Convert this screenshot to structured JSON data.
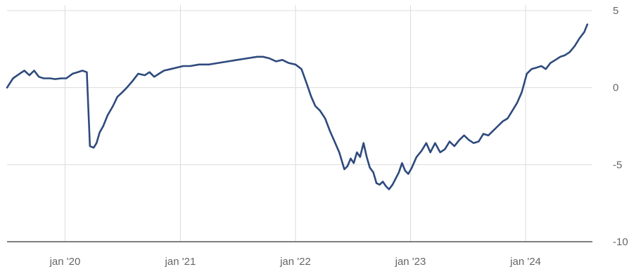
{
  "chart_data": {
    "type": "line",
    "title": "",
    "xlabel": "",
    "ylabel": "",
    "ylim": [
      -10,
      5
    ],
    "grid": true,
    "y_ticks": [
      5,
      0,
      -5,
      -10
    ],
    "y_tick_labels": [
      "5",
      "0",
      "-5",
      "-10"
    ],
    "x_ticks": [
      "2020-01-01",
      "2021-01-01",
      "2022-01-01",
      "2023-01-01",
      "2024-01-01"
    ],
    "x_tick_labels": [
      "jan '20",
      "jan '21",
      "jan '22",
      "jan '23",
      "jan '24"
    ],
    "x_range": [
      "2019-07-01",
      "2024-07-31"
    ],
    "line_color": "#2e4a7d",
    "series": [
      {
        "x": [
          "2019-07-01",
          "2019-07-20",
          "2019-08-10",
          "2019-08-25",
          "2019-09-10",
          "2019-09-25",
          "2019-10-10",
          "2019-10-25",
          "2019-11-15",
          "2019-12-01",
          "2019-12-20",
          "2020-01-05",
          "2020-01-25",
          "2020-02-10",
          "2020-02-25",
          "2020-03-10",
          "2020-03-20",
          "2020-04-01",
          "2020-04-10",
          "2020-04-20",
          "2020-05-01",
          "2020-05-15",
          "2020-06-01",
          "2020-06-15",
          "2020-07-01",
          "2020-07-15",
          "2020-08-01",
          "2020-08-20",
          "2020-09-10",
          "2020-09-25",
          "2020-10-10",
          "2020-10-25",
          "2020-11-10",
          "2020-12-01",
          "2020-12-20",
          "2021-01-10",
          "2021-02-01",
          "2021-03-01",
          "2021-04-01",
          "2021-05-01",
          "2021-06-01",
          "2021-07-01",
          "2021-08-01",
          "2021-09-01",
          "2021-09-20",
          "2021-10-10",
          "2021-11-01",
          "2021-11-20",
          "2021-12-10",
          "2022-01-01",
          "2022-01-20",
          "2022-02-05",
          "2022-02-20",
          "2022-03-05",
          "2022-03-20",
          "2022-04-05",
          "2022-04-20",
          "2022-05-05",
          "2022-05-20",
          "2022-06-05",
          "2022-06-15",
          "2022-06-25",
          "2022-07-05",
          "2022-07-15",
          "2022-07-25",
          "2022-08-05",
          "2022-08-15",
          "2022-08-25",
          "2022-09-05",
          "2022-09-15",
          "2022-09-25",
          "2022-10-05",
          "2022-10-15",
          "2022-10-25",
          "2022-11-05",
          "2022-11-15",
          "2022-11-25",
          "2022-12-05",
          "2022-12-15",
          "2022-12-25",
          "2023-01-05",
          "2023-01-20",
          "2023-02-05",
          "2023-02-20",
          "2023-03-05",
          "2023-03-20",
          "2023-04-05",
          "2023-04-20",
          "2023-05-05",
          "2023-05-20",
          "2023-06-05",
          "2023-06-20",
          "2023-07-05",
          "2023-07-20",
          "2023-08-05",
          "2023-08-20",
          "2023-09-05",
          "2023-09-20",
          "2023-10-05",
          "2023-10-20",
          "2023-11-05",
          "2023-11-20",
          "2023-12-05",
          "2023-12-20",
          "2024-01-05",
          "2024-01-20",
          "2024-02-05",
          "2024-02-20",
          "2024-03-05",
          "2024-03-20",
          "2024-04-05",
          "2024-04-20",
          "2024-05-05",
          "2024-05-20",
          "2024-06-05",
          "2024-06-20",
          "2024-07-05",
          "2024-07-15"
        ],
        "values": [
          0.0,
          0.6,
          0.9,
          1.1,
          0.8,
          1.1,
          0.7,
          0.6,
          0.6,
          0.55,
          0.6,
          0.6,
          0.9,
          1.0,
          1.1,
          1.0,
          -3.8,
          -3.9,
          -3.6,
          -2.9,
          -2.5,
          -1.8,
          -1.2,
          -0.6,
          -0.3,
          0.0,
          0.4,
          0.9,
          0.8,
          1.0,
          0.7,
          0.9,
          1.1,
          1.2,
          1.3,
          1.4,
          1.4,
          1.5,
          1.5,
          1.6,
          1.7,
          1.8,
          1.9,
          2.0,
          2.0,
          1.9,
          1.7,
          1.8,
          1.6,
          1.5,
          1.2,
          0.3,
          -0.6,
          -1.2,
          -1.5,
          -2.0,
          -2.8,
          -3.5,
          -4.2,
          -5.3,
          -5.1,
          -4.6,
          -4.9,
          -4.2,
          -4.5,
          -3.6,
          -4.5,
          -5.2,
          -5.5,
          -6.2,
          -6.3,
          -6.1,
          -6.4,
          -6.6,
          -6.3,
          -5.9,
          -5.5,
          -4.9,
          -5.4,
          -5.6,
          -5.2,
          -4.5,
          -4.1,
          -3.6,
          -4.2,
          -3.6,
          -4.2,
          -4.0,
          -3.5,
          -3.8,
          -3.4,
          -3.1,
          -3.4,
          -3.6,
          -3.5,
          -3.0,
          -3.1,
          -2.8,
          -2.5,
          -2.2,
          -2.0,
          -1.5,
          -1.0,
          -0.3,
          0.9,
          1.2,
          1.3,
          1.4,
          1.2,
          1.6,
          1.8,
          2.0,
          2.1,
          2.3,
          2.7,
          3.2,
          3.6,
          4.1
        ]
      }
    ]
  }
}
